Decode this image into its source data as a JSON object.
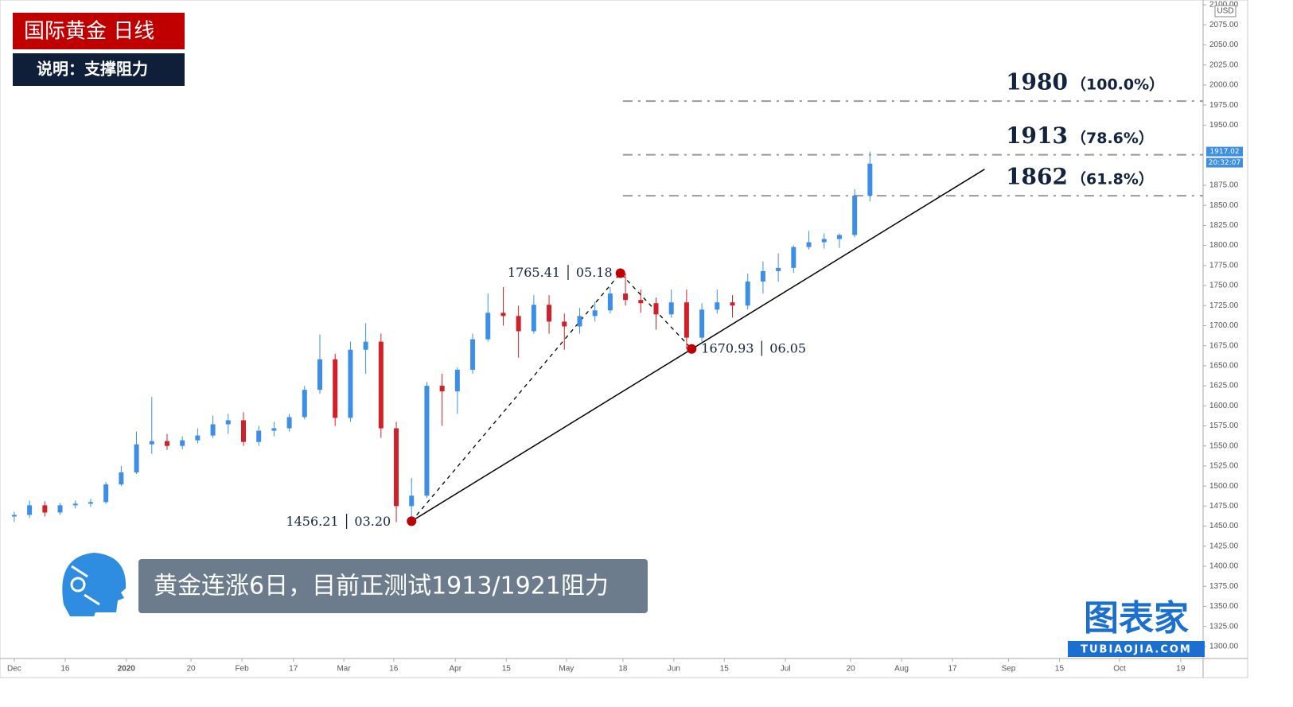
{
  "chart_data": {
    "type": "candlestick",
    "title": "国际黄金  日线",
    "subtitle": "说明：支撑阻力",
    "caption": "黄金连涨6日，目前正测试1913/1921阻力",
    "currency": "USD",
    "last_price": 1917.02,
    "timer": "20:32:07",
    "brand": {
      "name": "图表家",
      "url": "TUBIAOJIA.COM"
    },
    "up_color": "#3d8ee6",
    "down_color": "#d0202a",
    "x": [
      0,
      3,
      6,
      9,
      12,
      15,
      18,
      21,
      24,
      27,
      30,
      33,
      36,
      39,
      42,
      45,
      48,
      51,
      54,
      57,
      60,
      63,
      66,
      69,
      72,
      75,
      78,
      81,
      84,
      87,
      90,
      93,
      96,
      99,
      102,
      105,
      108,
      111,
      114,
      117,
      120,
      123,
      126,
      129,
      132,
      135,
      138,
      141,
      144,
      147,
      150,
      153,
      156,
      159,
      162,
      165,
      168
    ],
    "open": [
      1462,
      1464,
      1476,
      1467,
      1476,
      1478,
      1480,
      1502,
      1517,
      1552,
      1556,
      1550,
      1557,
      1563,
      1577,
      1582,
      1555,
      1569,
      1572,
      1586,
      1620,
      1658,
      1585,
      1670,
      1680,
      1572,
      1475,
      1488,
      1625,
      1618,
      1645,
      1683,
      1716,
      1712,
      1693,
      1726,
      1705,
      1699,
      1712,
      1719,
      1740,
      1732,
      1728,
      1714,
      1729,
      1685,
      1720,
      1729,
      1725,
      1755,
      1768,
      1772,
      1798,
      1804,
      1808,
      1813,
      1862
    ],
    "high": [
      1468,
      1482,
      1481,
      1479,
      1482,
      1484,
      1505,
      1525,
      1568,
      1611,
      1565,
      1562,
      1572,
      1588,
      1590,
      1592,
      1575,
      1580,
      1590,
      1625,
      1689,
      1665,
      1680,
      1703,
      1690,
      1580,
      1510,
      1630,
      1640,
      1648,
      1690,
      1740,
      1748,
      1725,
      1738,
      1738,
      1715,
      1722,
      1730,
      1748,
      1765,
      1745,
      1735,
      1745,
      1745,
      1728,
      1745,
      1738,
      1765,
      1780,
      1790,
      1800,
      1818,
      1815,
      1815,
      1870,
      1917
    ],
    "low": [
      1455,
      1460,
      1462,
      1464,
      1472,
      1474,
      1478,
      1500,
      1515,
      1540,
      1545,
      1546,
      1553,
      1560,
      1565,
      1550,
      1550,
      1562,
      1568,
      1583,
      1615,
      1575,
      1580,
      1640,
      1560,
      1455,
      1451,
      1485,
      1575,
      1590,
      1640,
      1680,
      1700,
      1660,
      1690,
      1690,
      1670,
      1690,
      1705,
      1715,
      1725,
      1716,
      1695,
      1710,
      1671,
      1680,
      1715,
      1710,
      1720,
      1740,
      1755,
      1766,
      1795,
      1796,
      1797,
      1810,
      1855
    ],
    "close": [
      1464,
      1476,
      1467,
      1476,
      1478,
      1480,
      1502,
      1517,
      1552,
      1556,
      1550,
      1557,
      1563,
      1577,
      1582,
      1555,
      1569,
      1572,
      1586,
      1620,
      1658,
      1585,
      1670,
      1680,
      1572,
      1475,
      1488,
      1625,
      1618,
      1645,
      1683,
      1716,
      1712,
      1693,
      1726,
      1705,
      1699,
      1712,
      1719,
      1740,
      1732,
      1728,
      1714,
      1729,
      1685,
      1720,
      1729,
      1725,
      1755,
      1768,
      1772,
      1798,
      1804,
      1808,
      1813,
      1862,
      1902
    ],
    "xlim": [
      -2.8,
      233.4
    ],
    "ylim": [
      1285,
      2106
    ],
    "xticks": [
      {
        "value": 0,
        "label": "Dec"
      },
      {
        "value": 10,
        "label": "16"
      },
      {
        "value": 22,
        "label": "2020"
      },
      {
        "value": 34.7,
        "label": "20"
      },
      {
        "value": 44.7,
        "label": "Feb"
      },
      {
        "value": 54.8,
        "label": "17"
      },
      {
        "value": 64.7,
        "label": "Mar"
      },
      {
        "value": 74.5,
        "label": "16"
      },
      {
        "value": 86.6,
        "label": "Apr"
      },
      {
        "value": 96.6,
        "label": "15"
      },
      {
        "value": 108.4,
        "label": "May"
      },
      {
        "value": 119.5,
        "label": "18"
      },
      {
        "value": 129.5,
        "label": "Jun"
      },
      {
        "value": 139.4,
        "label": "15"
      },
      {
        "value": 151.4,
        "label": "Jul"
      },
      {
        "value": 164.2,
        "label": "20"
      },
      {
        "value": 174.2,
        "label": "Aug"
      },
      {
        "value": 184.2,
        "label": "17"
      },
      {
        "value": 195.2,
        "label": "Sep"
      },
      {
        "value": 205.2,
        "label": "15"
      },
      {
        "value": 217,
        "label": "Oct"
      },
      {
        "value": 229,
        "label": "19"
      }
    ],
    "yticks": [
      {
        "value": 1300,
        "label": "1300.00"
      },
      {
        "value": 1325,
        "label": "1325.00"
      },
      {
        "value": 1350,
        "label": "1350.00"
      },
      {
        "value": 1375,
        "label": "1375.00"
      },
      {
        "value": 1400,
        "label": "1400.00"
      },
      {
        "value": 1425,
        "label": "1425.00"
      },
      {
        "value": 1450,
        "label": "1450.00"
      },
      {
        "value": 1475,
        "label": "1475.00"
      },
      {
        "value": 1500,
        "label": "1500.00"
      },
      {
        "value": 1525,
        "label": "1525.00"
      },
      {
        "value": 1550,
        "label": "1550.00"
      },
      {
        "value": 1575,
        "label": "1575.00"
      },
      {
        "value": 1600,
        "label": "1600.00"
      },
      {
        "value": 1625,
        "label": "1625.00"
      },
      {
        "value": 1650,
        "label": "1650.00"
      },
      {
        "value": 1675,
        "label": "1675.00"
      },
      {
        "value": 1700,
        "label": "1700.00"
      },
      {
        "value": 1725,
        "label": "1725.00"
      },
      {
        "value": 1750,
        "label": "1750.00"
      },
      {
        "value": 1775,
        "label": "1775.00"
      },
      {
        "value": 1800,
        "label": "1800.00"
      },
      {
        "value": 1825,
        "label": "1825.00"
      },
      {
        "value": 1850,
        "label": "1850.00"
      },
      {
        "value": 1875,
        "label": "1875.00"
      },
      {
        "value": 1950,
        "label": "1950.00"
      },
      {
        "value": 1975,
        "label": "1975.00"
      },
      {
        "value": 2000,
        "label": "2000.00"
      },
      {
        "value": 2025,
        "label": "2025.00"
      },
      {
        "value": 2050,
        "label": "2050.00"
      },
      {
        "value": 2075,
        "label": "2075.00"
      },
      {
        "value": 2100,
        "label": "2100.00"
      }
    ],
    "pivots": {
      "x": [
        78,
        119,
        133
      ],
      "values": [
        1456.21,
        1765.41,
        1670.93
      ],
      "value_labels": [
        "1456.21 │ 03.20",
        "1765.41 │ 05.18",
        "1670.93 │ 06.05"
      ]
    },
    "trendline": {
      "x": [
        78,
        190.5
      ],
      "values": [
        1456.21,
        1895
      ]
    },
    "fib_levels": {
      "start_x": 119.5,
      "values": [
        1980,
        1913,
        1862
      ],
      "labels": [
        "（100.0%）",
        "（78.6%）",
        "（61.8%）"
      ]
    }
  }
}
